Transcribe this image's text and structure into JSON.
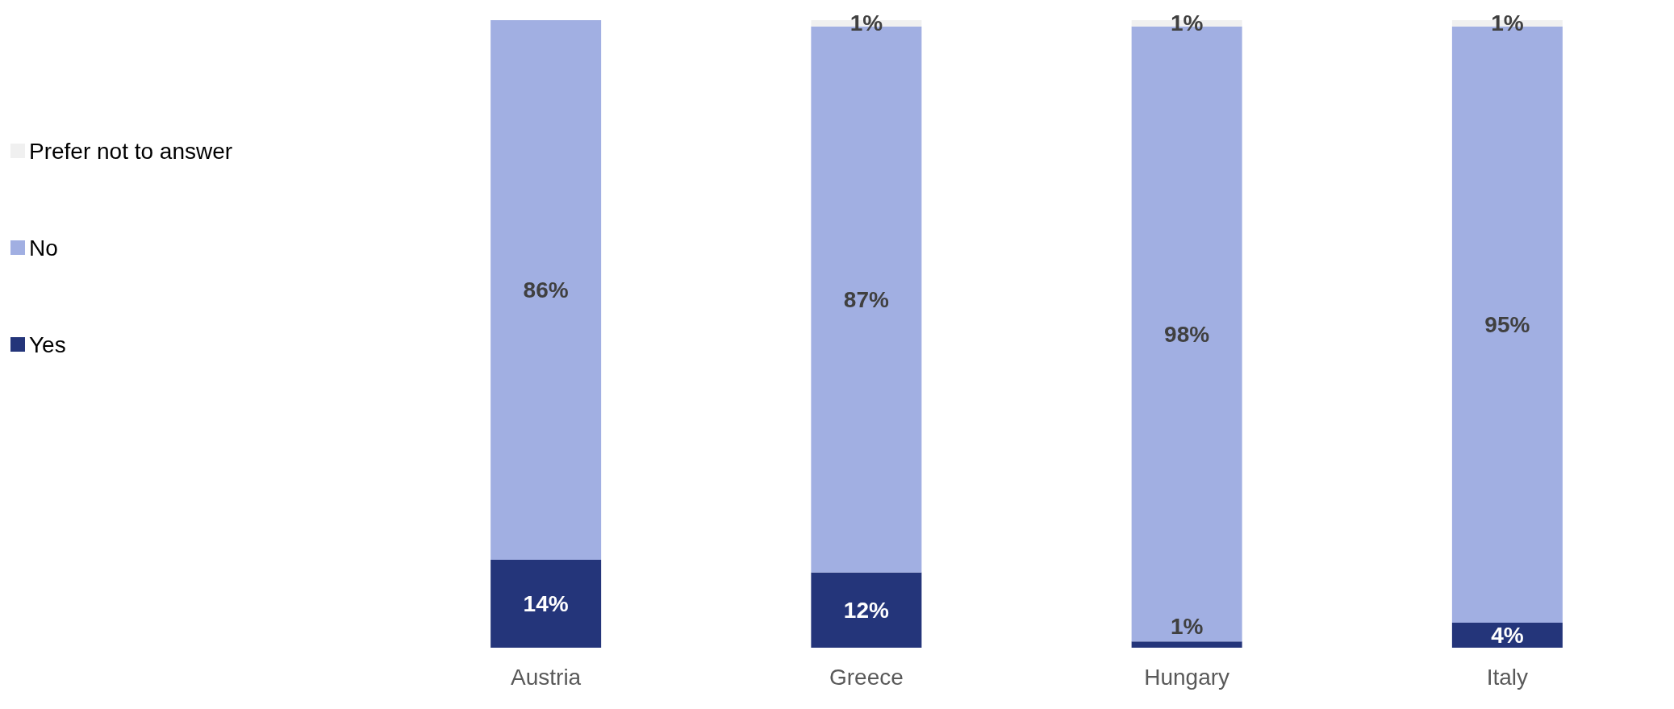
{
  "chart_data": {
    "type": "bar",
    "stacked": true,
    "legend": "left",
    "categories": [
      "Austria",
      "Greece",
      "Hungary",
      "Italy"
    ],
    "series": [
      {
        "name": "Yes",
        "color": "#24357a",
        "values": [
          14,
          12,
          1,
          4
        ],
        "value_labels": [
          "14%",
          "12%",
          "1%",
          "4%"
        ]
      },
      {
        "name": "No",
        "color": "#a1afe2",
        "values": [
          86,
          87,
          98,
          95
        ],
        "value_labels": [
          "86%",
          "87%",
          "98%",
          "95%"
        ]
      },
      {
        "name": "Prefer not to answer",
        "color": "#f0f0f0",
        "values": [
          0,
          1,
          1,
          1
        ],
        "value_labels": [
          null,
          "1%",
          "1%",
          "1%"
        ]
      }
    ]
  }
}
